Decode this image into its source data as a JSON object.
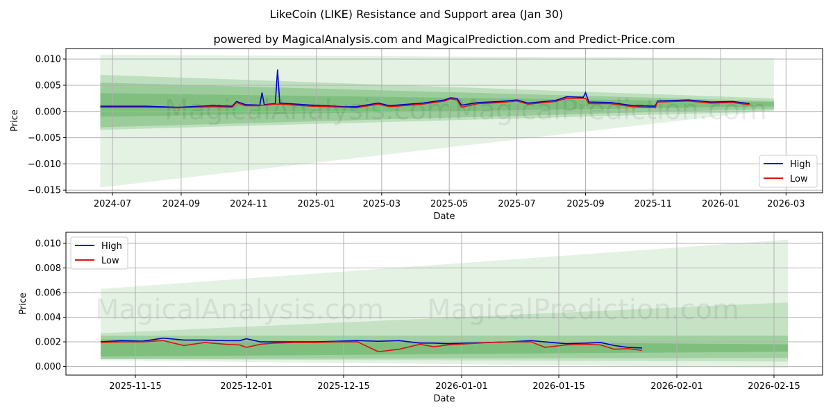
{
  "title": "LikeCoin (LIKE) Resistance and Support area (Jan 30)",
  "subtitle": "powered by MagicalAnalysis.com and MagicalPrediction.com and Predict-Price.com",
  "watermarks": [
    "MagicalAnalysis.com",
    "MagicalPrediction.com"
  ],
  "colors": {
    "high": "#0000cc",
    "low": "#dd1111",
    "band": "#4ca64c"
  },
  "chart_data": [
    {
      "type": "line",
      "xlabel": "Date",
      "ylabel": "Price",
      "x_unit": "days since 2024-07-01",
      "ylim": [
        -0.0155,
        0.012
      ],
      "xlim": [
        -42,
        641
      ],
      "yticks": [
        {
          "v": 0.01,
          "label": "0.010"
        },
        {
          "v": 0.005,
          "label": "0.005"
        },
        {
          "v": 0,
          "label": "0.000"
        },
        {
          "v": -0.005,
          "label": "−0.005"
        },
        {
          "v": -0.01,
          "label": "−0.010"
        },
        {
          "v": -0.015,
          "label": "−0.015"
        }
      ],
      "xticks": [
        {
          "v": 0,
          "label": "2024-07"
        },
        {
          "v": 62,
          "label": "2024-09"
        },
        {
          "v": 123,
          "label": "2024-11"
        },
        {
          "v": 184,
          "label": "2025-01"
        },
        {
          "v": 243,
          "label": "2025-03"
        },
        {
          "v": 304,
          "label": "2025-05"
        },
        {
          "v": 365,
          "label": "2025-07"
        },
        {
          "v": 427,
          "label": "2025-09"
        },
        {
          "v": 488,
          "label": "2025-11"
        },
        {
          "v": 549,
          "label": "2026-01"
        },
        {
          "v": 608,
          "label": "2026-03"
        }
      ],
      "legend": {
        "position": "bottom-right",
        "entries": [
          "High",
          "Low"
        ]
      },
      "bands": {
        "x": [
          -11,
          597
        ],
        "ranges": [
          {
            "start": [
              -0.0145,
              0.0108
            ],
            "end": [
              0.0003,
              0.0102
            ],
            "opacity": 0.15
          },
          {
            "start": [
              -0.0035,
              0.007
            ],
            "end": [
              0.0,
              0.0025
            ],
            "opacity": 0.25
          },
          {
            "start": [
              -0.003,
              0.0055
            ],
            "end": [
              0.0005,
              0.002
            ],
            "opacity": 0.3
          },
          {
            "start": [
              -0.001,
              0.0035
            ],
            "end": [
              0.001,
              0.0018
            ],
            "opacity": 0.35
          }
        ]
      },
      "series": [
        {
          "name": "High",
          "x": [
            -11,
            30,
            60,
            90,
            108,
            112,
            120,
            133,
            135,
            137,
            147,
            149,
            151,
            180,
            210,
            220,
            240,
            250,
            280,
            300,
            305,
            311,
            315,
            330,
            350,
            365,
            375,
            400,
            410,
            425,
            427,
            430,
            450,
            470,
            490,
            492,
            520,
            540,
            560,
            575
          ],
          "y": [
            0.001,
            0.001,
            0.0008,
            0.0011,
            0.001,
            0.0019,
            0.0013,
            0.0012,
            0.0036,
            0.0013,
            0.0015,
            0.008,
            0.0016,
            0.0012,
            0.0009,
            0.0009,
            0.0016,
            0.0011,
            0.0016,
            0.0022,
            0.0026,
            0.0025,
            0.0012,
            0.0017,
            0.0019,
            0.0022,
            0.0016,
            0.0021,
            0.0028,
            0.0027,
            0.0036,
            0.0018,
            0.0017,
            0.0011,
            0.001,
            0.002,
            0.0022,
            0.0018,
            0.0019,
            0.0015
          ]
        },
        {
          "name": "Low",
          "x": [
            -11,
            30,
            60,
            90,
            108,
            112,
            120,
            133,
            135,
            137,
            147,
            149,
            151,
            180,
            210,
            220,
            240,
            250,
            280,
            300,
            305,
            311,
            315,
            330,
            350,
            365,
            375,
            400,
            410,
            425,
            427,
            430,
            450,
            470,
            490,
            492,
            520,
            540,
            560,
            575
          ],
          "y": [
            0.0008,
            0.0008,
            0.0007,
            0.0009,
            0.0008,
            0.0017,
            0.0011,
            0.0011,
            0.0012,
            0.0012,
            0.0014,
            0.0014,
            0.0014,
            0.001,
            0.0008,
            0.0007,
            0.0014,
            0.0009,
            0.0014,
            0.002,
            0.0024,
            0.0022,
            0.0008,
            0.0015,
            0.0017,
            0.002,
            0.0014,
            0.0019,
            0.0025,
            0.0025,
            0.0025,
            0.0015,
            0.0015,
            0.0009,
            0.0007,
            0.0018,
            0.002,
            0.0016,
            0.0017,
            0.0013
          ]
        }
      ]
    },
    {
      "type": "line",
      "xlabel": "Date",
      "ylabel": "Price",
      "x_unit": "days since 2025-11-10",
      "ylim": [
        -0.0007,
        0.0109
      ],
      "xlim": [
        -5,
        104
      ],
      "yticks": [
        {
          "v": 0.01,
          "label": "0.010"
        },
        {
          "v": 0.008,
          "label": "0.008"
        },
        {
          "v": 0.006,
          "label": "0.006"
        },
        {
          "v": 0.004,
          "label": "0.004"
        },
        {
          "v": 0.002,
          "label": "0.002"
        },
        {
          "v": 0,
          "label": "0.000"
        }
      ],
      "xticks": [
        {
          "v": 5,
          "label": "2025-11-15"
        },
        {
          "v": 21,
          "label": "2025-12-01"
        },
        {
          "v": 35,
          "label": "2025-12-15"
        },
        {
          "v": 52,
          "label": "2026-01-01"
        },
        {
          "v": 66,
          "label": "2026-01-15"
        },
        {
          "v": 83,
          "label": "2026-02-01"
        },
        {
          "v": 97,
          "label": "2026-02-15"
        }
      ],
      "legend": {
        "position": "top-left",
        "entries": [
          "High",
          "Low"
        ]
      },
      "bands": {
        "x": [
          0,
          99
        ],
        "ranges": [
          {
            "start": [
              0.0005,
              0.0063
            ],
            "end": [
              -0.0001,
              0.0103
            ],
            "opacity": 0.15
          },
          {
            "start": [
              0.0006,
              0.0027
            ],
            "end": [
              0.0004,
              0.0052
            ],
            "opacity": 0.2
          },
          {
            "start": [
              0.0006,
              0.0025
            ],
            "end": [
              0.0007,
              0.0025
            ],
            "opacity": 0.3
          },
          {
            "start": [
              0.0008,
              0.0022
            ],
            "end": [
              0.0012,
              0.0018
            ],
            "opacity": 0.4
          }
        ]
      },
      "series": [
        {
          "name": "High",
          "x": [
            0,
            3,
            6,
            9,
            12,
            15,
            18,
            20,
            21,
            23,
            25,
            28,
            31,
            34,
            37,
            40,
            43,
            46,
            48,
            50,
            53,
            56,
            59,
            62,
            64,
            67,
            70,
            72,
            74,
            76,
            78
          ],
          "y": [
            0.002,
            0.0021,
            0.00205,
            0.0023,
            0.00215,
            0.00215,
            0.0021,
            0.0021,
            0.00225,
            0.002,
            0.002,
            0.002,
            0.002,
            0.00205,
            0.0021,
            0.00205,
            0.0021,
            0.0019,
            0.0019,
            0.00185,
            0.0019,
            0.00195,
            0.002,
            0.0021,
            0.002,
            0.00185,
            0.0019,
            0.00195,
            0.0017,
            0.00155,
            0.0015
          ]
        },
        {
          "name": "Low",
          "x": [
            0,
            3,
            6,
            9,
            12,
            15,
            18,
            20,
            21,
            23,
            25,
            28,
            31,
            34,
            37,
            40,
            43,
            46,
            48,
            50,
            53,
            56,
            59,
            62,
            64,
            67,
            70,
            72,
            74,
            76,
            78
          ],
          "y": [
            0.00195,
            0.002,
            0.002,
            0.0021,
            0.0017,
            0.00195,
            0.0018,
            0.00175,
            0.00155,
            0.0018,
            0.0019,
            0.00195,
            0.00195,
            0.002,
            0.002,
            0.0012,
            0.0014,
            0.0018,
            0.0016,
            0.00175,
            0.00185,
            0.00195,
            0.002,
            0.002,
            0.00155,
            0.00175,
            0.0018,
            0.00175,
            0.0014,
            0.00145,
            0.0013
          ]
        }
      ]
    }
  ]
}
